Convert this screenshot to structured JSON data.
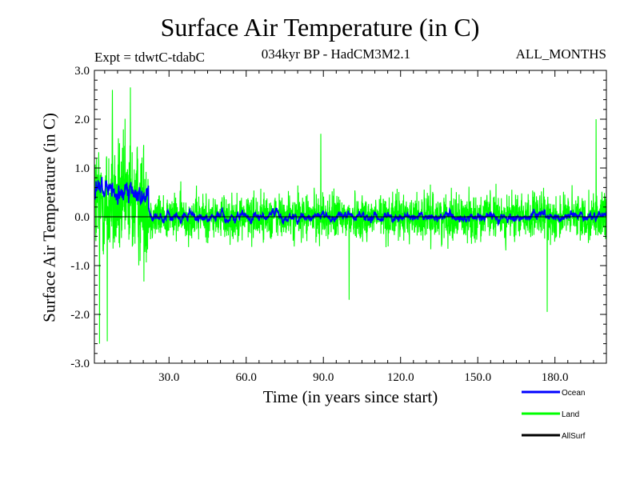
{
  "chart_data": {
    "type": "line",
    "title": "Surface Air Temperature (in C)",
    "expt_label": "Expt = tdwtC-tdabC",
    "subtitle": "034kyr BP - HadCM3M2.1",
    "months_label": "ALL_MONTHS",
    "xlabel": "Time (in years since start)",
    "ylabel": "Surface Air Temperature (in C)",
    "xlim": [
      1,
      200
    ],
    "ylim": [
      -3.0,
      3.0
    ],
    "x_ticks": [
      30,
      60,
      90,
      120,
      150,
      180
    ],
    "x_tick_labels": [
      "30.0",
      "60.0",
      "90.0",
      "120.0",
      "150.0",
      "180.0"
    ],
    "y_ticks": [
      -3,
      -2,
      -1,
      0,
      1,
      2,
      3
    ],
    "y_tick_labels": [
      "-3.0",
      "-2.0",
      "-1.0",
      "0.0",
      "1.0",
      "2.0",
      "3.0"
    ],
    "zero_line": true,
    "series": [
      {
        "name": "Land",
        "color": "#00ff00",
        "segments": [
          {
            "x_start": 1,
            "x_end": 22,
            "mean": 0.3,
            "amplitude": 1.2
          },
          {
            "x_start": 22,
            "x_end": 200,
            "mean": 0.0,
            "amplitude": 0.45
          }
        ],
        "peaks": [
          {
            "x": 8,
            "y": 2.6
          },
          {
            "x": 15,
            "y": 2.65
          },
          {
            "x": 3,
            "y": -2.6
          },
          {
            "x": 6,
            "y": -2.55
          },
          {
            "x": 89,
            "y": 1.7
          },
          {
            "x": 100,
            "y": -1.7
          },
          {
            "x": 177,
            "y": -1.95
          },
          {
            "x": 196,
            "y": 2.0
          }
        ]
      },
      {
        "name": "Ocean",
        "color": "#0000ff",
        "segments": [
          {
            "x_start": 1,
            "x_end": 22,
            "mean": 0.45,
            "amplitude": 0.4
          },
          {
            "x_start": 22,
            "x_end": 200,
            "mean": 0.0,
            "amplitude": 0.15
          }
        ],
        "peaks": []
      },
      {
        "name": "AllSurf",
        "color": "#000000",
        "segments": [],
        "peaks": []
      }
    ],
    "legend_position": "bottom-right"
  }
}
